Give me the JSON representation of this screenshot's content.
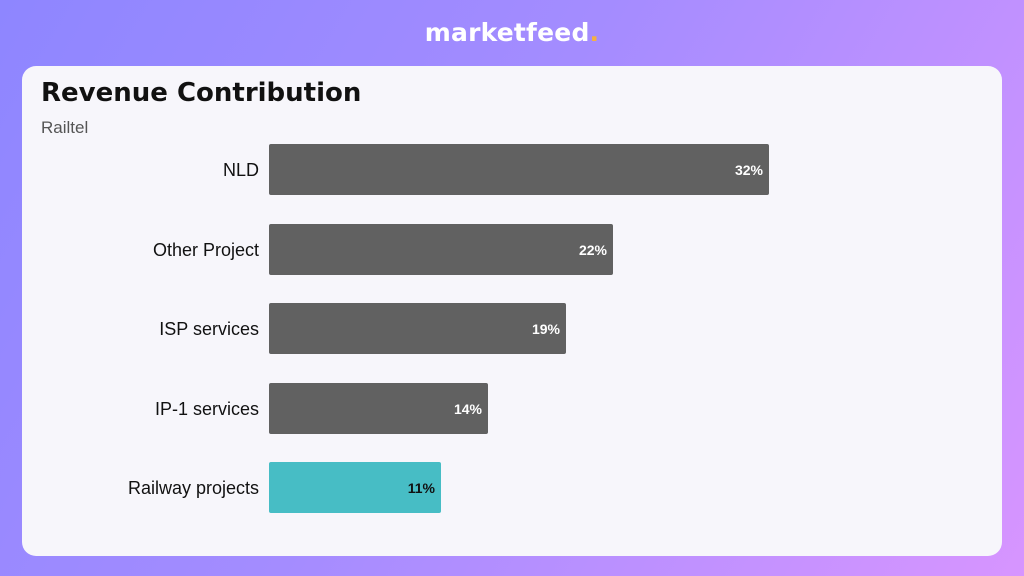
{
  "brand": {
    "name": "marketfeed",
    "dot": "."
  },
  "chart_data": {
    "type": "bar",
    "orientation": "horizontal",
    "title": "Revenue Contribution",
    "subtitle": "Railtel",
    "categories": [
      "NLD",
      "Other Project",
      "ISP services",
      "IP-1 services",
      "Railway projects"
    ],
    "values": [
      32,
      22,
      19,
      14,
      11
    ],
    "value_labels": [
      "32%",
      "22%",
      "19%",
      "14%",
      "11%"
    ],
    "unit": "%",
    "xlim": [
      0,
      32
    ],
    "grid": false,
    "legend": "none",
    "colors": {
      "default": "#616161",
      "highlight": "#47bdc5",
      "default_label": "#ffffff",
      "highlight_label": "#111111"
    },
    "highlight_category": "Railway projects"
  }
}
